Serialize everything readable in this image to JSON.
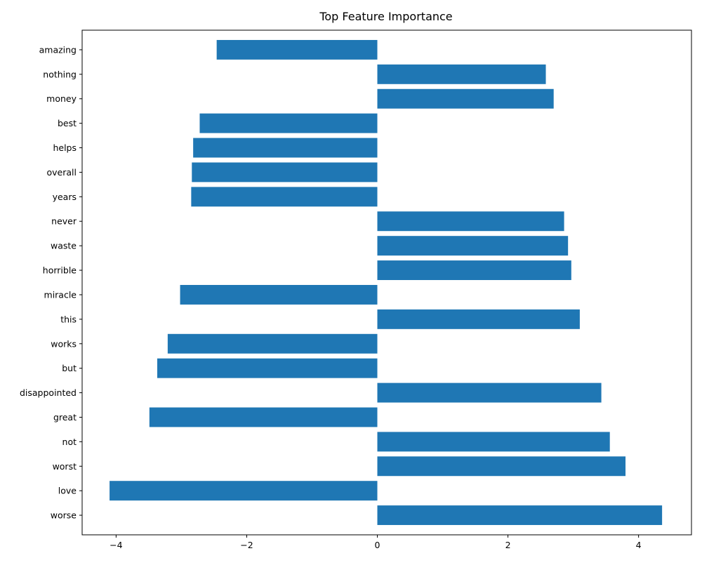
{
  "chart_data": {
    "type": "bar",
    "orientation": "horizontal",
    "title": "Top Feature Importance",
    "xlabel": "",
    "ylabel": "",
    "categories": [
      "worse",
      "love",
      "worst",
      "not",
      "great",
      "disappointed",
      "but",
      "works",
      "this",
      "miracle",
      "horrible",
      "waste",
      "never",
      "years",
      "overall",
      "helps",
      "best",
      "money",
      "nothing",
      "amazing"
    ],
    "values": [
      4.36,
      -4.1,
      3.8,
      3.56,
      -3.49,
      3.43,
      -3.37,
      -3.21,
      3.1,
      -3.02,
      2.97,
      2.92,
      2.86,
      -2.85,
      -2.84,
      -2.82,
      -2.72,
      2.7,
      2.58,
      -2.46
    ],
    "xlim": [
      -4.52,
      4.81
    ],
    "xticks": [
      -4,
      -2,
      0,
      2,
      4
    ],
    "xtick_labels": [
      "−4",
      "−2",
      "0",
      "2",
      "4"
    ],
    "grid": false,
    "bar_color": "#1f77b4"
  }
}
